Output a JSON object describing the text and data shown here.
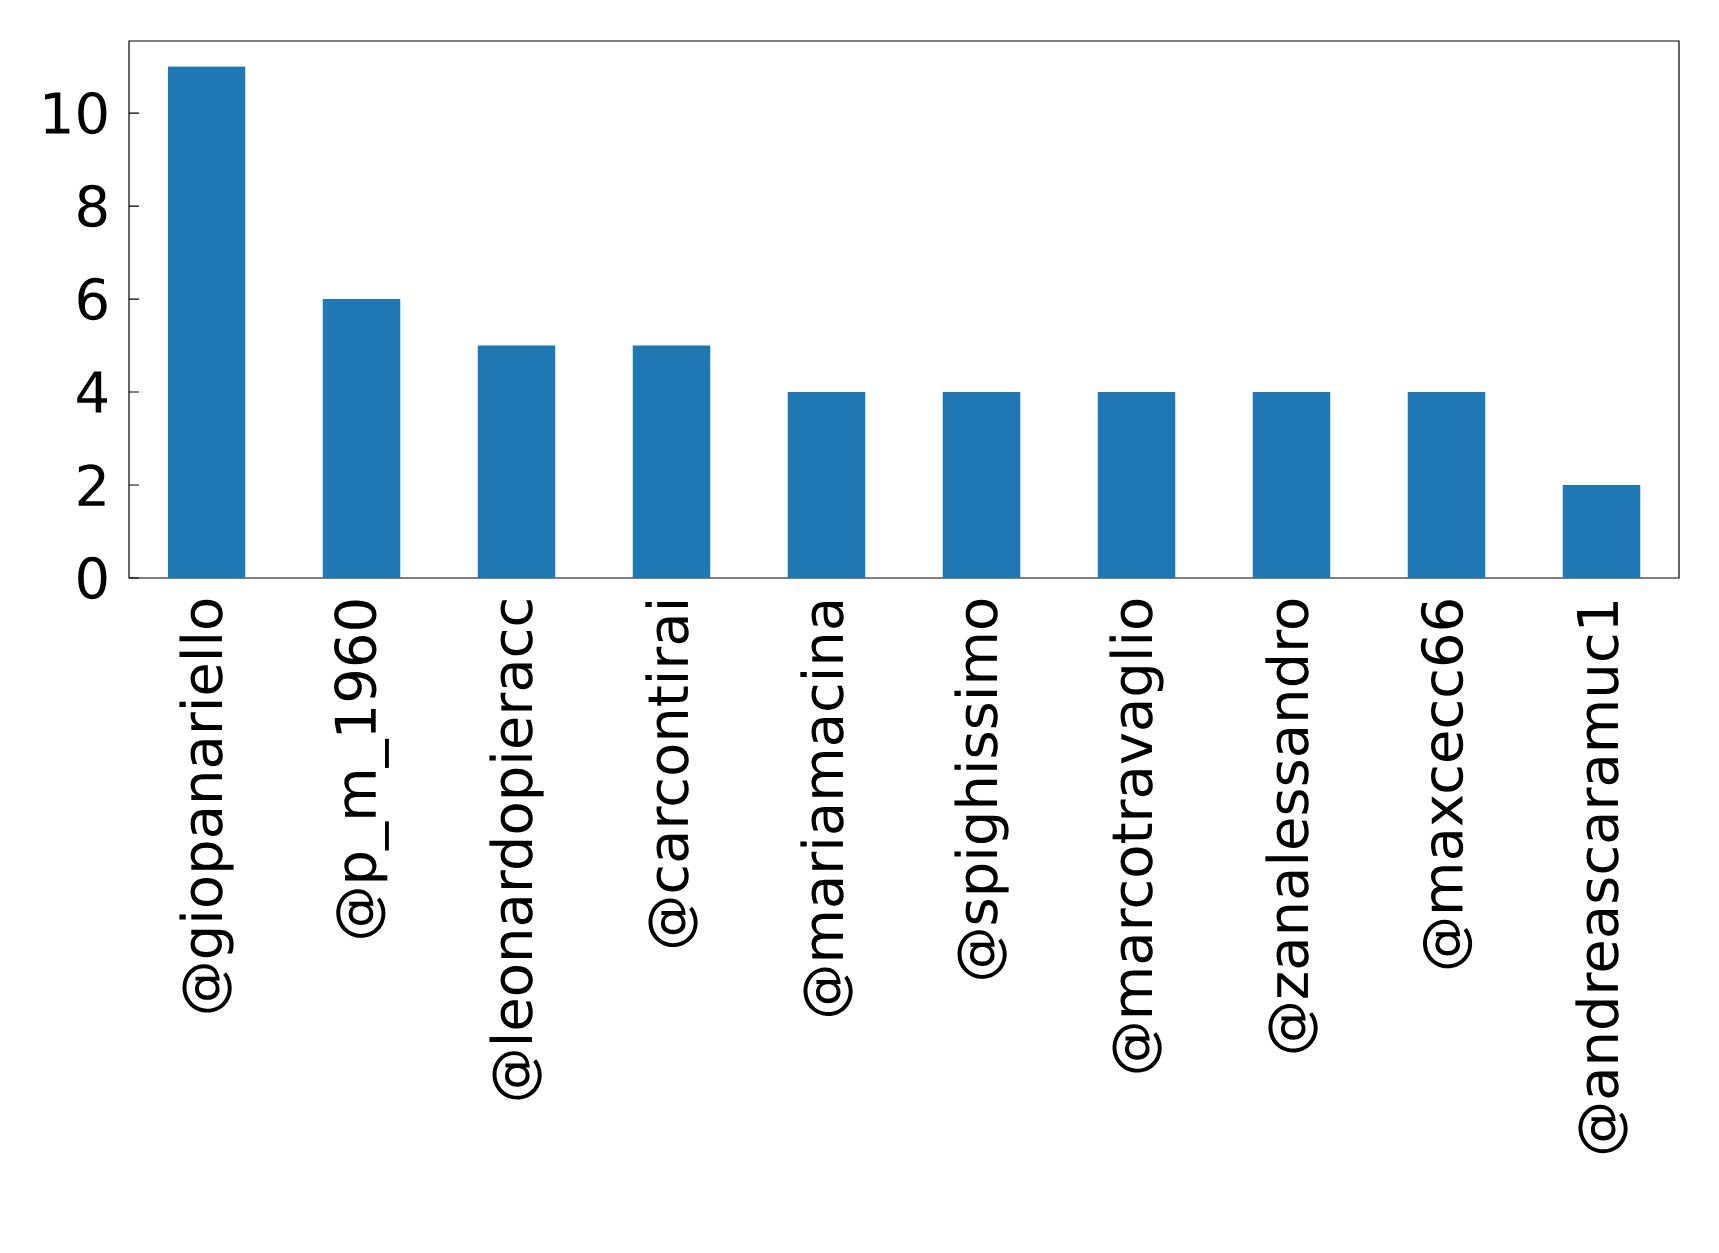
{
  "chart_data": {
    "type": "bar",
    "categories": [
      "@giopanariello",
      "@p_m_1960",
      "@leonardopieracc",
      "@carcontirai",
      "@mariamacina",
      "@spighissimo",
      "@marcotravaglio",
      "@zanalessandro",
      "@maxcecc66",
      "@andreascaramuc1"
    ],
    "values": [
      11,
      6,
      5,
      5,
      4,
      4,
      4,
      4,
      4,
      2
    ],
    "color": "#1f77b4",
    "ylim": [
      0,
      11.55
    ],
    "yticks": [
      0,
      2,
      4,
      6,
      8,
      10
    ]
  }
}
